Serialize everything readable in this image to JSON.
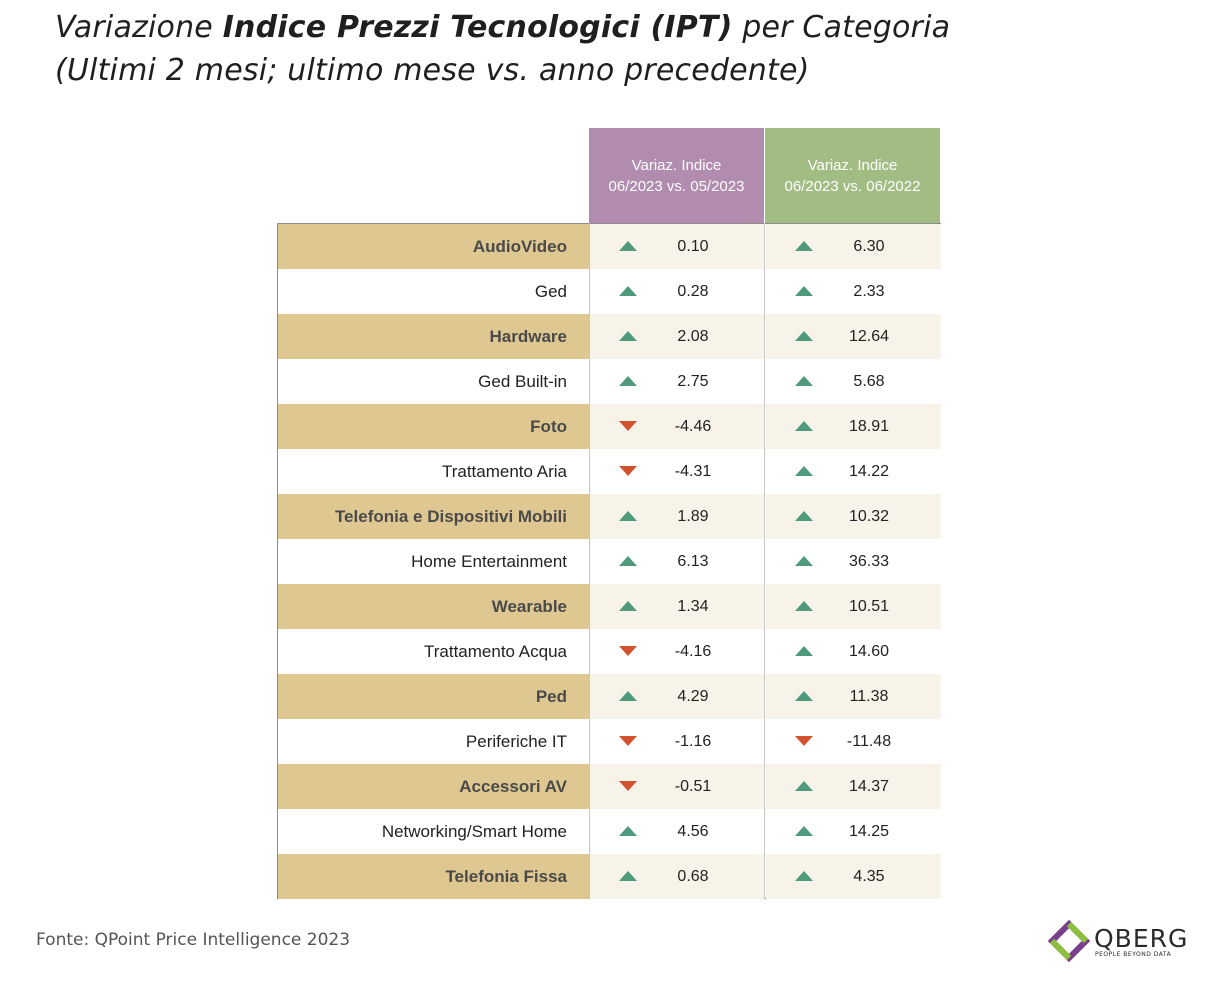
{
  "title": {
    "pre": "Variazione ",
    "bold": "Indice Prezzi Tecnologici (IPT)",
    "post": " per Categoria",
    "line2": "(Ultimi 2 mesi; ultimo mese vs. anno precedente)"
  },
  "chart_data": {
    "type": "table",
    "columns": [
      {
        "line1": "Variaz. Indice",
        "line2": "06/2023 vs. 05/2023",
        "color": "#b18cae"
      },
      {
        "line1": "Variaz. Indice",
        "line2": "06/2023 vs. 06/2022",
        "color": "#a2bd84"
      }
    ],
    "rows": [
      {
        "category": "AudioVideo",
        "values": [
          "0.10",
          "6.30"
        ]
      },
      {
        "category": "Ged",
        "values": [
          "0.28",
          "2.33"
        ]
      },
      {
        "category": "Hardware",
        "values": [
          "2.08",
          "12.64"
        ]
      },
      {
        "category": "Ged Built-in",
        "values": [
          "2.75",
          "5.68"
        ]
      },
      {
        "category": "Foto",
        "values": [
          "-4.46",
          "18.91"
        ]
      },
      {
        "category": "Trattamento Aria",
        "values": [
          "-4.31",
          "14.22"
        ]
      },
      {
        "category": "Telefonia e Dispositivi Mobili",
        "values": [
          "1.89",
          "10.32"
        ]
      },
      {
        "category": "Home Entertainment",
        "values": [
          "6.13",
          "36.33"
        ]
      },
      {
        "category": "Wearable",
        "values": [
          "1.34",
          "10.51"
        ]
      },
      {
        "category": "Trattamento Acqua",
        "values": [
          "-4.16",
          "14.60"
        ]
      },
      {
        "category": "Ped",
        "values": [
          "4.29",
          "11.38"
        ]
      },
      {
        "category": "Periferiche IT",
        "values": [
          "-1.16",
          "-11.48"
        ]
      },
      {
        "category": "Accessori AV",
        "values": [
          "-0.51",
          "14.37"
        ]
      },
      {
        "category": "Networking/Smart Home",
        "values": [
          "4.56",
          "14.25"
        ]
      },
      {
        "category": "Telefonia Fissa",
        "values": [
          "0.68",
          "4.35"
        ]
      }
    ],
    "colors": {
      "up": "#4f9a7c",
      "down": "#d2522f",
      "band": "#dec790"
    }
  },
  "footer": {
    "source": "Fonte: QPoint Price Intelligence 2023"
  },
  "logo": {
    "name": "QBERG",
    "tagline": "PEOPLE BEYOND DATA"
  }
}
